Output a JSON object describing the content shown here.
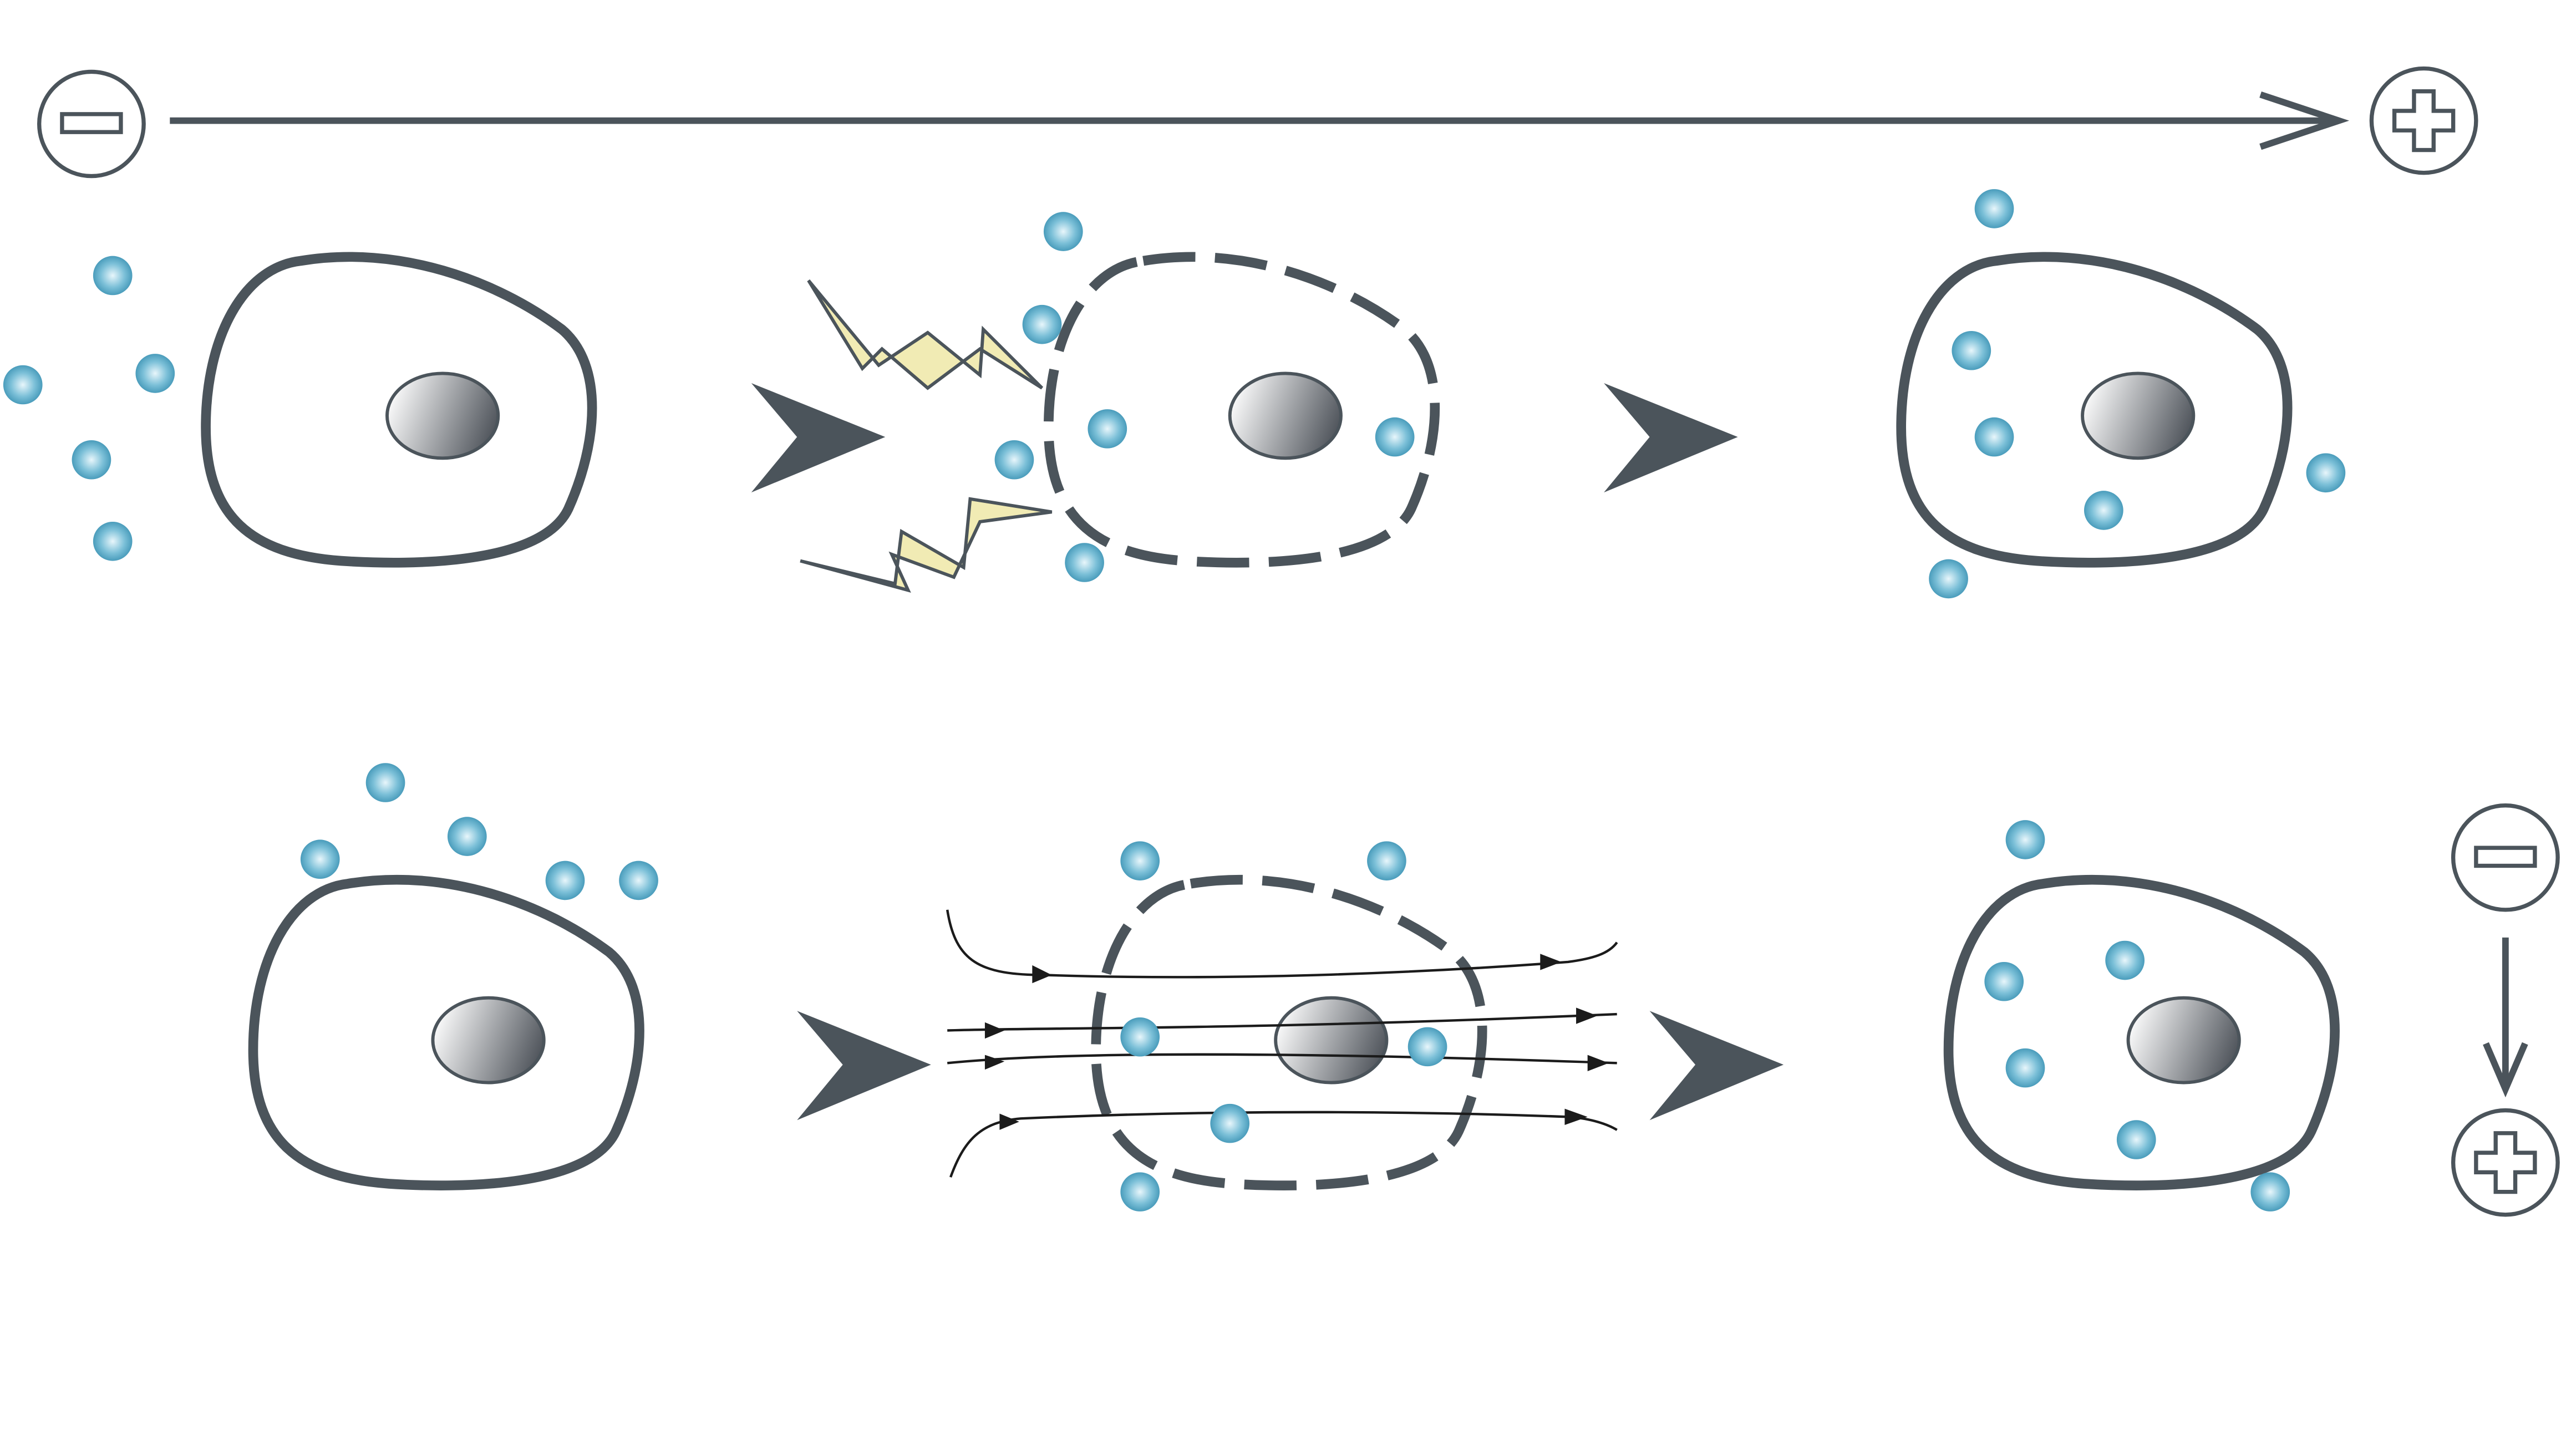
{
  "colors": {
    "background": "#ffffff",
    "stroke": "#4b545b",
    "membrane": "#4b545b",
    "particle_light": "#e8f6fb",
    "particle_mid": "#7cc0d8",
    "particle_dark": "#3d93b4",
    "nucleus_light": "#ffffff",
    "nucleus_dark": "#4f545b",
    "lightning_fill": "#f1ebb4",
    "lightning_stroke": "#4b545b",
    "field_line": "#1b1b1b"
  },
  "icons": {
    "negative_pole": "minus-circle-icon",
    "positive_pole": "plus-circle-icon",
    "step_arrow": "chevron-arrow-icon",
    "electric_pulse": "lightning-bolt-icon",
    "magnetic_field": "field-lines-icon"
  },
  "rows": [
    {
      "id": "electric",
      "field_direction": "left-to-right",
      "stages": [
        "intact-cell",
        "permeabilized-cell",
        "loaded-cell"
      ]
    },
    {
      "id": "field",
      "field_direction": "top-to-bottom",
      "stages": [
        "intact-cell",
        "permeabilized-cell",
        "loaded-cell"
      ]
    }
  ]
}
